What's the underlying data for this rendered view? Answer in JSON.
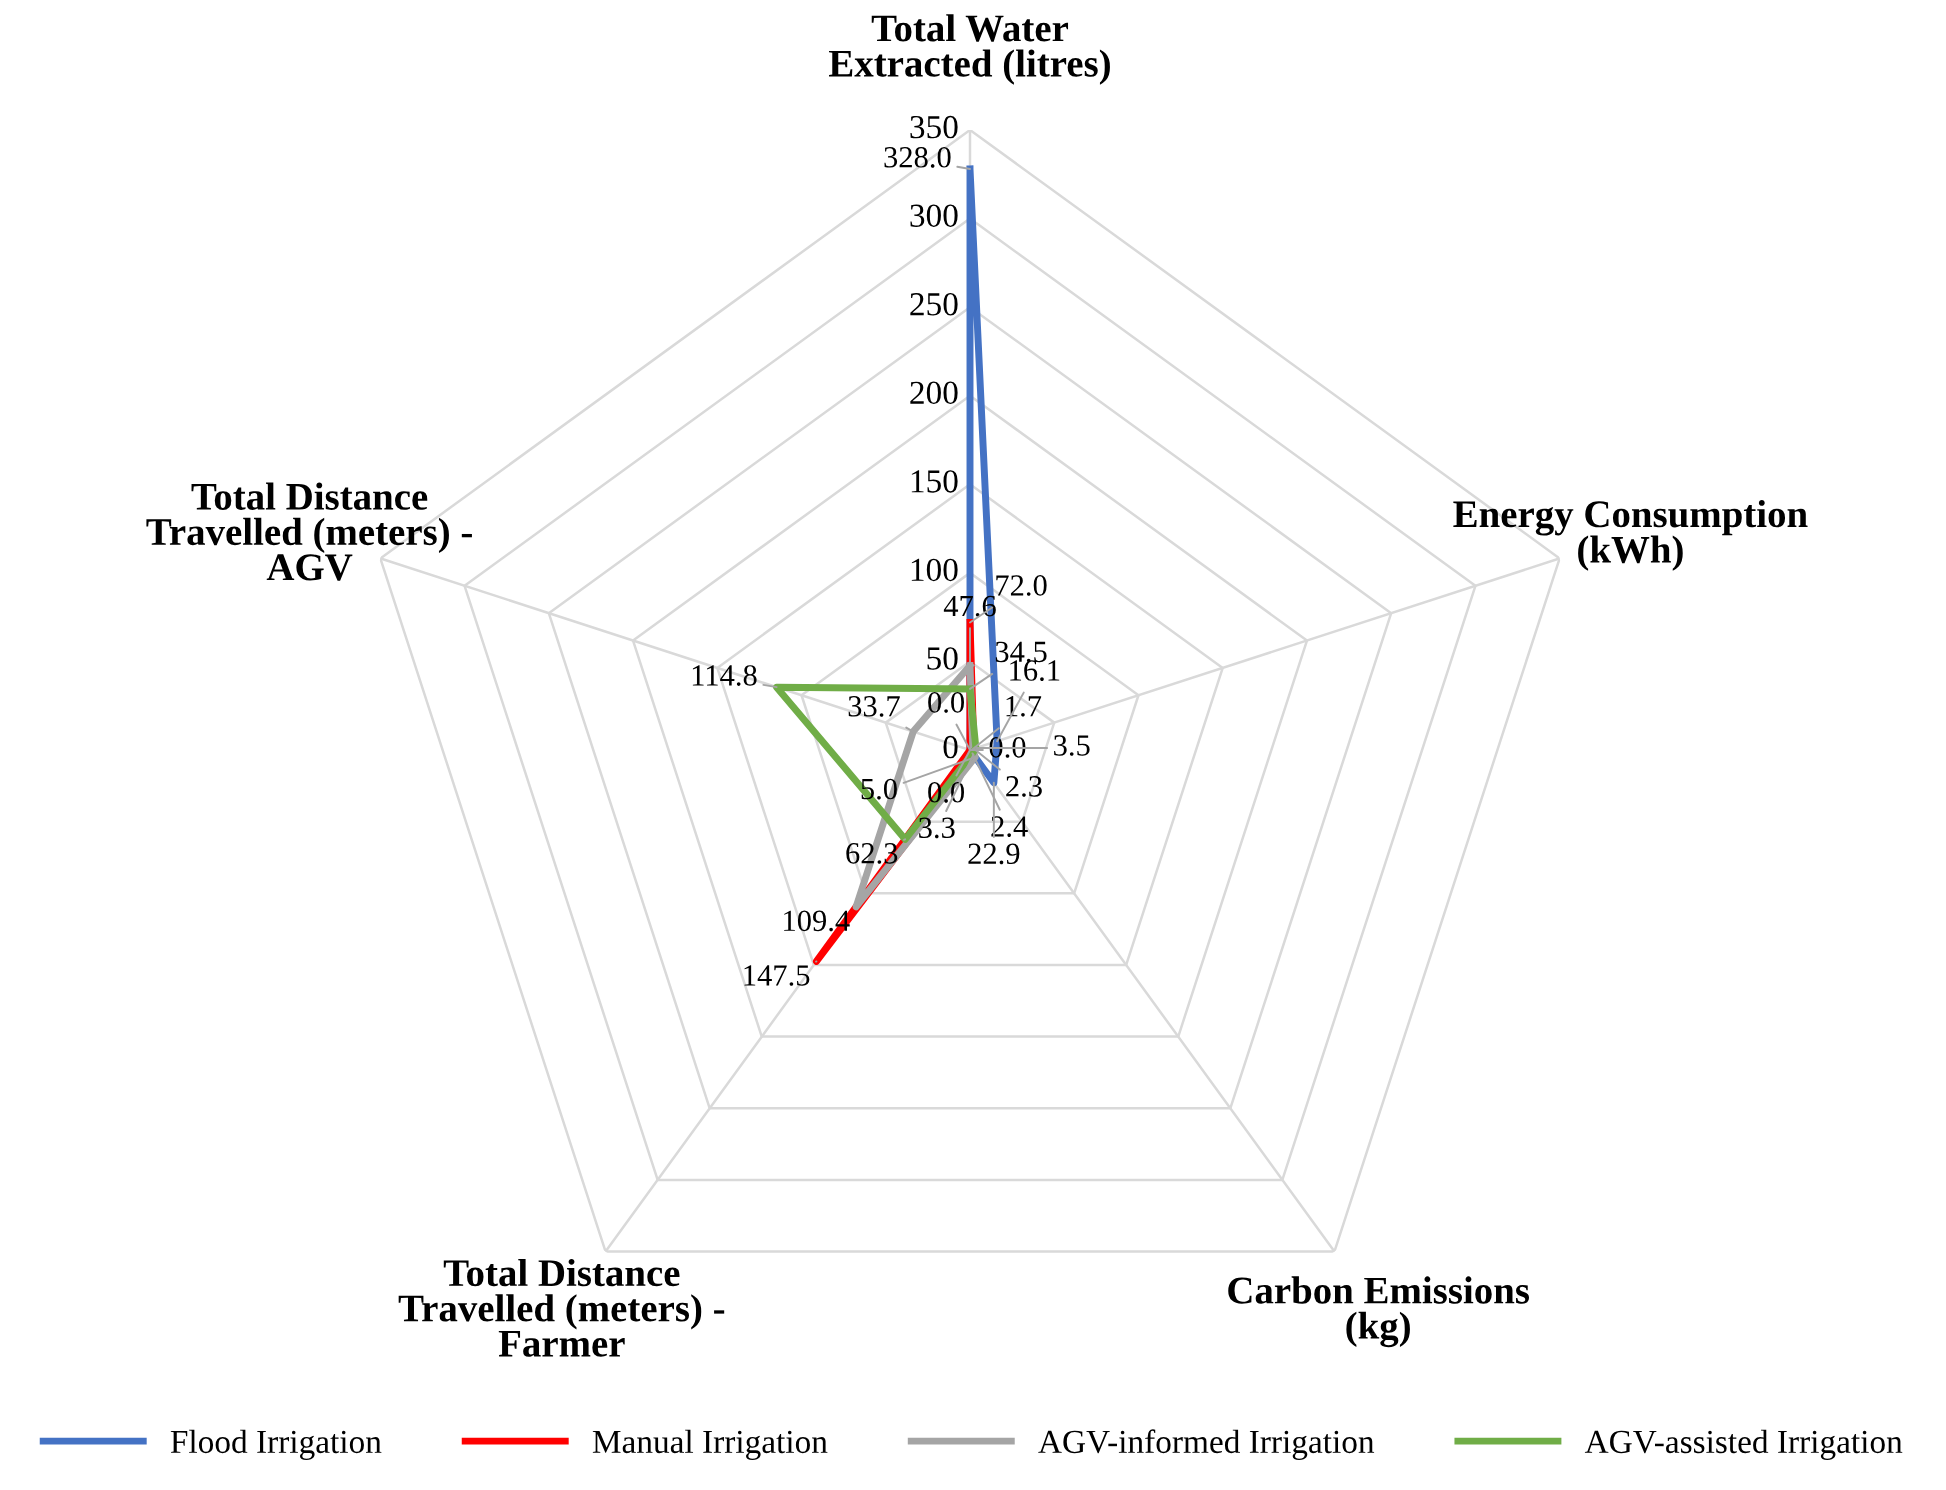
{
  "chart_data": {
    "type": "radar",
    "categories": [
      "Total Water Extracted (litres)",
      "Energy Consumption (kWh)",
      "Carbon Emissions (kg)",
      "Total Distance Travelled (meters) - Farmer",
      "Total Distance Travelled (meters) - AGV"
    ],
    "series": [
      {
        "name": "Flood Irrigation",
        "color": "#4472c4",
        "values": [
          328.0,
          16.1,
          22.9,
          0.0,
          0.0
        ],
        "value_labels": [
          "328.0",
          "16.1",
          "22.9",
          "0.0",
          "0.0"
        ]
      },
      {
        "name": "Manual Irrigation",
        "color": "#ff0000",
        "values": [
          72.0,
          2.3,
          3.3,
          147.5,
          0.0
        ],
        "value_labels": [
          "72.0",
          "2.3",
          "3.3",
          "147.5",
          "0.0"
        ]
      },
      {
        "name": "AGV-informed Irrigation",
        "color": "#a5a5a5",
        "values": [
          47.6,
          1.7,
          5.0,
          109.4,
          33.7
        ],
        "value_labels": [
          "47.6",
          "1.7",
          "5.0",
          "109.4",
          "33.7"
        ]
      },
      {
        "name": "AGV-assisted Irrigation",
        "color": "#70ad47",
        "values": [
          34.5,
          3.5,
          2.4,
          62.3,
          114.8
        ],
        "value_labels": [
          "34.5",
          "3.5",
          "2.4",
          "62.3",
          "114.8"
        ]
      }
    ],
    "ylim": [
      0,
      350
    ],
    "yticks": [
      0,
      50,
      100,
      150,
      200,
      250,
      300,
      350
    ],
    "grid": true,
    "legend": "bottom",
    "marker": "none",
    "line_style": "solid"
  }
}
